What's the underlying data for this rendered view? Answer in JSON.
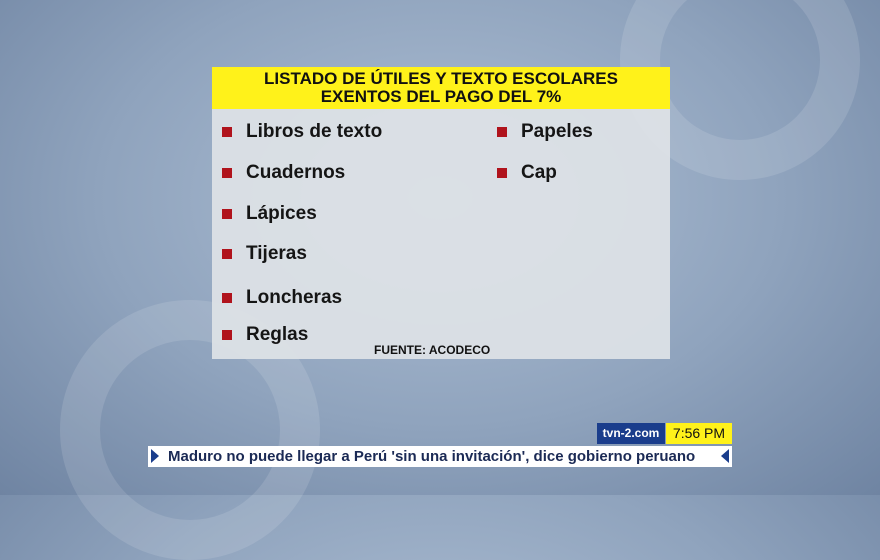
{
  "graphic": {
    "title_line1": "LISTADO DE ÚTILES  Y TEXTO ESCOLARES",
    "title_line2": "EXENTOS DEL PAGO DEL 7%",
    "items_left": [
      "Libros de texto",
      "Cuadernos",
      "Lápices",
      "Tijeras",
      "Loncheras",
      "Reglas"
    ],
    "items_right": [
      "Papeles",
      "Cap"
    ],
    "source": "FUENTE: ACODECO"
  },
  "lower_third": {
    "site": "tvn-2.com",
    "time": "7:56 PM",
    "headline": "Maduro no puede llegar a Perú 'sin una invitación', dice gobierno peruano"
  },
  "colors": {
    "title_bg": "#fff21a",
    "bullet": "#b0131c",
    "site_bg": "#1a3d8c"
  }
}
